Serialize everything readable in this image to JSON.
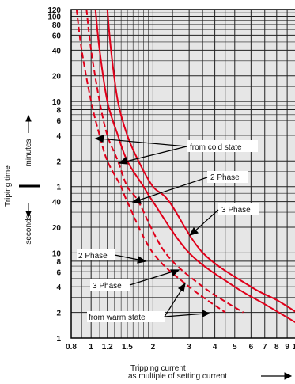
{
  "chart_data": {
    "type": "line",
    "xlabel": "Tripping current",
    "xlabel_line2": "as multiple of setting current",
    "ylabel": "Triping time",
    "yunit_upper": "minutes",
    "yunit_lower": "seconds",
    "x_scale": "log",
    "xlim": [
      0.8,
      10
    ],
    "x_ticks": [
      0.8,
      1,
      1.2,
      1.5,
      2,
      3,
      4,
      5,
      6,
      7,
      8,
      9,
      10
    ],
    "x_tick_labels": [
      "0.8",
      "1",
      "1.2",
      "1.5",
      "2",
      "3",
      "4",
      "5",
      "6",
      "7",
      "8",
      "9",
      "10"
    ],
    "y_minute_ticks": [
      1,
      2,
      4,
      6,
      8,
      10,
      20,
      40,
      60,
      80,
      100,
      120
    ],
    "y_minute_tick_labels": [
      "1",
      "2",
      "4",
      "6",
      "8",
      "10",
      "20",
      "40",
      "60",
      "80",
      "100",
      "120"
    ],
    "y_second_ticks": [
      1,
      2,
      4,
      6,
      8,
      10,
      20,
      40
    ],
    "y_second_tick_labels": [
      "1",
      "2",
      "4",
      "6",
      "8",
      "10",
      "20",
      "40"
    ],
    "grid": true,
    "series": [
      {
        "name": "2 Phase",
        "state": "cold",
        "style": "solid",
        "points": [
          [
            1.05,
            "120 min"
          ],
          [
            1.1,
            "40 min"
          ],
          [
            1.2,
            "10 min"
          ],
          [
            1.35,
            "4 min"
          ],
          [
            1.5,
            "2 min"
          ],
          [
            1.8,
            "1 min"
          ],
          [
            2.0,
            "40 s"
          ],
          [
            3.0,
            "10 s"
          ],
          [
            5.0,
            "4 s"
          ],
          [
            7.0,
            "2.5 s"
          ],
          [
            10.0,
            "1.5 s"
          ]
        ]
      },
      {
        "name": "3 Phase",
        "state": "cold",
        "style": "solid",
        "points": [
          [
            1.2,
            "120 min"
          ],
          [
            1.25,
            "40 min"
          ],
          [
            1.35,
            "10 min"
          ],
          [
            1.5,
            "4 min"
          ],
          [
            1.7,
            "2 min"
          ],
          [
            2.0,
            "1 min"
          ],
          [
            2.4,
            "40 s"
          ],
          [
            3.5,
            "10 s"
          ],
          [
            6.0,
            "4 s"
          ],
          [
            8.0,
            "2.8 s"
          ],
          [
            10.0,
            "2 s"
          ]
        ]
      },
      {
        "name": "2 Phase",
        "state": "warm",
        "style": "dashed",
        "points": [
          [
            0.85,
            "120 min"
          ],
          [
            0.9,
            "40 min"
          ],
          [
            1.0,
            "10 min"
          ],
          [
            1.1,
            "4 min"
          ],
          [
            1.2,
            "2 min"
          ],
          [
            1.4,
            "1 min"
          ],
          [
            1.5,
            "40 s"
          ],
          [
            2.0,
            "10 s"
          ],
          [
            3.0,
            "4 s"
          ],
          [
            4.5,
            "2 s"
          ]
        ]
      },
      {
        "name": "3 Phase",
        "state": "warm",
        "style": "dashed",
        "points": [
          [
            0.95,
            "120 min"
          ],
          [
            1.0,
            "40 min"
          ],
          [
            1.1,
            "10 min"
          ],
          [
            1.2,
            "4 min"
          ],
          [
            1.35,
            "2 min"
          ],
          [
            1.5,
            "1 min"
          ],
          [
            1.7,
            "40 s"
          ],
          [
            2.3,
            "10 s"
          ],
          [
            3.5,
            "4 s"
          ],
          [
            5.5,
            "2 s"
          ]
        ]
      }
    ],
    "annotations": {
      "cold": "from cold state",
      "warm": "from warm state",
      "phase2_cold": "2 Phase",
      "phase3_cold": "3 Phase",
      "phase2_warm": "2 Phase",
      "phase3_warm": "3 Phase"
    },
    "colors": {
      "curve": "#e0001a",
      "grid": "#222222",
      "plot_bg": "#e6e6e6"
    }
  }
}
